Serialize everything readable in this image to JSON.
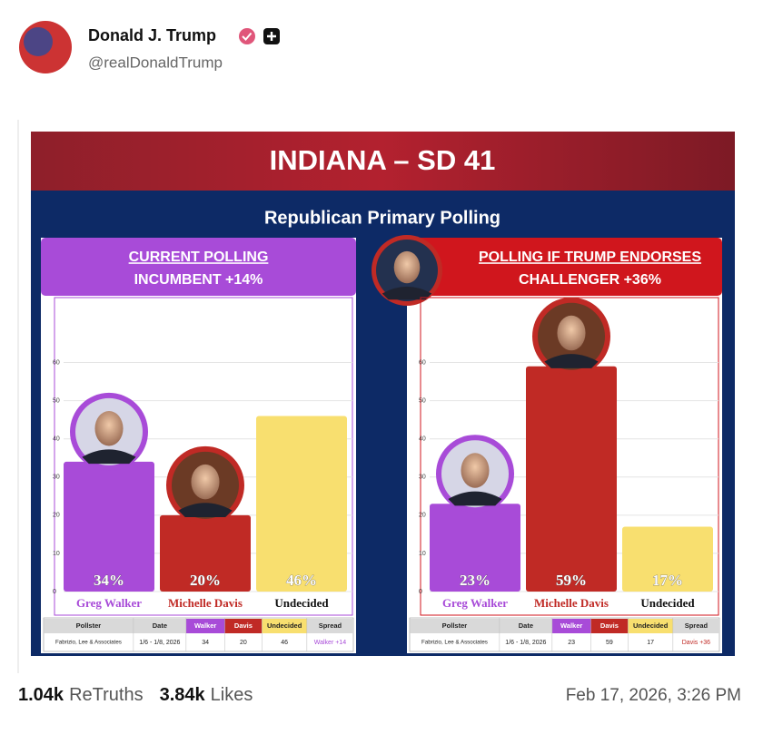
{
  "post": {
    "name": "Donald J. Trump",
    "handle": "@realDonaldTrump",
    "retruths_count": "1.04k",
    "retruths_label": "ReTruths",
    "likes_count": "3.84k",
    "likes_label": "Likes",
    "timestamp": "Feb 17, 2026, 3:26 PM"
  },
  "graphic": {
    "title": "INDIANA – SD 41",
    "subtitle": "Republican Primary Polling"
  },
  "chart_data": [
    {
      "type": "bar",
      "title": "CURRENT POLLING",
      "subtitle": "INCUMBENT +14%",
      "categories": [
        "Greg Walker",
        "Michelle Davis",
        "Undecided"
      ],
      "values": [
        34,
        20,
        46
      ],
      "value_labels": [
        "34%",
        "20%",
        "46%"
      ],
      "colors": [
        "#a84bd8",
        "#c02a25",
        "#f8df6f"
      ],
      "header_color": "#a84bd8",
      "ylim": [
        0,
        77
      ],
      "yticks": [
        0,
        10,
        20,
        30,
        40,
        50,
        60
      ],
      "grid": true,
      "table": {
        "headers": [
          "Pollster",
          "Date",
          "Walker",
          "Davis",
          "Undecided",
          "Spread"
        ],
        "row": [
          "Fabrizio, Lee & Associates",
          "1/6 - 1/8, 2026",
          34,
          20,
          46,
          "Walker +14"
        ]
      }
    },
    {
      "type": "bar",
      "title": "POLLING IF TRUMP ENDORSES",
      "subtitle": "CHALLENGER +36%",
      "categories": [
        "Greg Walker",
        "Michelle Davis",
        "Undecided"
      ],
      "values": [
        23,
        59,
        17
      ],
      "value_labels": [
        "23%",
        "59%",
        "17%"
      ],
      "colors": [
        "#a84bd8",
        "#c02a25",
        "#f8df6f"
      ],
      "header_color": "#d0161d",
      "ylim": [
        0,
        77
      ],
      "yticks": [
        0,
        10,
        20,
        30,
        40,
        50,
        60
      ],
      "grid": true,
      "table": {
        "headers": [
          "Pollster",
          "Date",
          "Walker",
          "Davis",
          "Undecided",
          "Spread"
        ],
        "row": [
          "Fabrizio, Lee & Associates",
          "1/6 - 1/8, 2026",
          23,
          59,
          17,
          "Davis +36"
        ]
      }
    }
  ]
}
